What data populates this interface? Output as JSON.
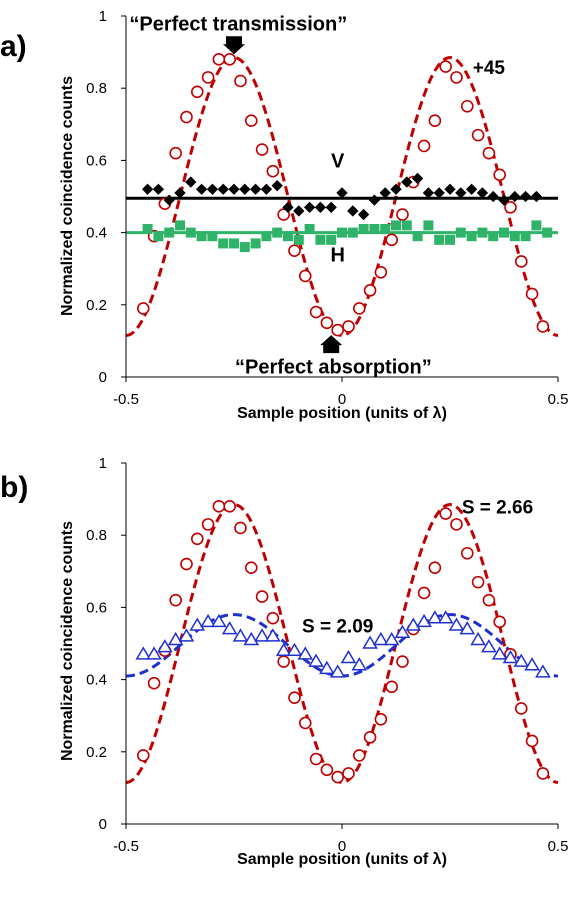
{
  "chart_data": [
    {
      "type": "scatter",
      "panel_label": "a)",
      "xlabel": "Sample position (units of λ)",
      "ylabel": "Normalized coincidence counts",
      "xlim": [
        -0.5,
        0.5
      ],
      "ylim": [
        0,
        1
      ],
      "x_ticks": [
        "-0.5",
        "0",
        "0.5"
      ],
      "y_ticks": [
        "0",
        "0.2",
        "0.4",
        "0.6",
        "0.8",
        "1"
      ],
      "grid": false,
      "colors": {
        "plus45": "#c00000",
        "V": "#000000",
        "H": "#2eb368"
      },
      "annotations": [
        {
          "text": "“Perfect transmission”",
          "x": -0.24,
          "y": 0.91,
          "arrow": "down"
        },
        {
          "text": "“Perfect absorption”",
          "x": -0.02,
          "y": 0.08,
          "arrow": "up"
        },
        {
          "text": "+45",
          "x": 0.34,
          "y": 0.84
        },
        {
          "text": "V",
          "x": -0.01,
          "y": 0.58
        },
        {
          "text": "H",
          "x": -0.01,
          "y": 0.32
        }
      ],
      "series": [
        {
          "label": "+45",
          "marker": "open-circle",
          "fit": {
            "kind": "dashed",
            "mean": 0.5,
            "amplitude": 0.385,
            "period": 0.5,
            "peak_x": -0.25
          },
          "x": [
            -0.46,
            -0.435,
            -0.41,
            -0.385,
            -0.36,
            -0.335,
            -0.31,
            -0.285,
            -0.26,
            -0.235,
            -0.21,
            -0.185,
            -0.16,
            -0.135,
            -0.11,
            -0.085,
            -0.06,
            -0.035,
            -0.01,
            0.015,
            0.04,
            0.065,
            0.09,
            0.115,
            0.14,
            0.165,
            0.19,
            0.215,
            0.24,
            0.265,
            0.29,
            0.315,
            0.34,
            0.365,
            0.39,
            0.415,
            0.44,
            0.465
          ],
          "y": [
            0.19,
            0.39,
            0.48,
            0.62,
            0.72,
            0.79,
            0.83,
            0.88,
            0.88,
            0.82,
            0.71,
            0.63,
            0.57,
            0.45,
            0.35,
            0.28,
            0.18,
            0.15,
            0.13,
            0.14,
            0.19,
            0.24,
            0.29,
            0.38,
            0.45,
            0.54,
            0.64,
            0.71,
            0.86,
            0.83,
            0.75,
            0.67,
            0.62,
            0.56,
            0.47,
            0.32,
            0.23,
            0.14
          ]
        },
        {
          "label": "V",
          "marker": "filled-diamond",
          "fit": {
            "kind": "solid",
            "value": 0.495
          },
          "x": [
            -0.45,
            -0.425,
            -0.4,
            -0.375,
            -0.35,
            -0.325,
            -0.3,
            -0.275,
            -0.25,
            -0.225,
            -0.2,
            -0.175,
            -0.15,
            -0.125,
            -0.1,
            -0.075,
            -0.05,
            -0.025,
            0.0,
            0.025,
            0.05,
            0.075,
            0.1,
            0.125,
            0.15,
            0.175,
            0.2,
            0.225,
            0.25,
            0.275,
            0.3,
            0.325,
            0.35,
            0.375,
            0.4,
            0.425,
            0.45
          ],
          "y": [
            0.52,
            0.52,
            0.49,
            0.51,
            0.54,
            0.52,
            0.52,
            0.52,
            0.52,
            0.52,
            0.52,
            0.52,
            0.53,
            0.47,
            0.46,
            0.47,
            0.47,
            0.47,
            0.51,
            0.46,
            0.45,
            0.49,
            0.51,
            0.52,
            0.54,
            0.55,
            0.51,
            0.51,
            0.52,
            0.51,
            0.52,
            0.51,
            0.5,
            0.49,
            0.5,
            0.5,
            0.5
          ]
        },
        {
          "label": "H",
          "marker": "filled-square",
          "fit": {
            "kind": "solid",
            "value": 0.4
          },
          "x": [
            -0.45,
            -0.425,
            -0.4,
            -0.375,
            -0.35,
            -0.325,
            -0.3,
            -0.275,
            -0.25,
            -0.225,
            -0.2,
            -0.175,
            -0.15,
            -0.125,
            -0.1,
            -0.075,
            -0.05,
            -0.025,
            0.0,
            0.025,
            0.05,
            0.075,
            0.1,
            0.125,
            0.15,
            0.175,
            0.2,
            0.225,
            0.25,
            0.275,
            0.3,
            0.325,
            0.35,
            0.375,
            0.4,
            0.425,
            0.45,
            0.475
          ],
          "y": [
            0.41,
            0.39,
            0.4,
            0.42,
            0.4,
            0.39,
            0.39,
            0.37,
            0.37,
            0.36,
            0.37,
            0.39,
            0.4,
            0.39,
            0.38,
            0.41,
            0.38,
            0.38,
            0.4,
            0.4,
            0.41,
            0.41,
            0.41,
            0.42,
            0.42,
            0.39,
            0.42,
            0.38,
            0.38,
            0.4,
            0.39,
            0.4,
            0.39,
            0.4,
            0.39,
            0.39,
            0.42,
            0.4
          ]
        }
      ]
    },
    {
      "type": "scatter",
      "panel_label": "b)",
      "xlabel": "Sample position (units of λ)",
      "ylabel": "Normalized coincidence counts",
      "xlim": [
        -0.5,
        0.5
      ],
      "ylim": [
        0,
        1
      ],
      "x_ticks": [
        "-0.5",
        "0",
        "0.5"
      ],
      "y_ticks": [
        "0",
        "0.2",
        "0.4",
        "0.6",
        "0.8",
        "1"
      ],
      "grid": false,
      "colors": {
        "red": "#c00000",
        "blue": "#2030d0"
      },
      "annotations": [
        {
          "text": "S = 2.66",
          "x": 0.36,
          "y": 0.86
        },
        {
          "text": "S = 2.09",
          "x": -0.01,
          "y": 0.53
        }
      ],
      "series": [
        {
          "marker": "open-circle",
          "fit": {
            "kind": "dashed",
            "mean": 0.5,
            "amplitude": 0.385,
            "period": 0.5,
            "peak_x": -0.25
          },
          "x": [
            -0.46,
            -0.435,
            -0.41,
            -0.385,
            -0.36,
            -0.335,
            -0.31,
            -0.285,
            -0.26,
            -0.235,
            -0.21,
            -0.185,
            -0.16,
            -0.135,
            -0.11,
            -0.085,
            -0.06,
            -0.035,
            -0.01,
            0.015,
            0.04,
            0.065,
            0.09,
            0.115,
            0.14,
            0.165,
            0.19,
            0.215,
            0.24,
            0.265,
            0.29,
            0.315,
            0.34,
            0.365,
            0.39,
            0.415,
            0.44,
            0.465
          ],
          "y": [
            0.19,
            0.39,
            0.48,
            0.62,
            0.72,
            0.79,
            0.83,
            0.88,
            0.88,
            0.82,
            0.71,
            0.63,
            0.57,
            0.45,
            0.35,
            0.28,
            0.18,
            0.15,
            0.13,
            0.14,
            0.19,
            0.24,
            0.29,
            0.38,
            0.45,
            0.54,
            0.64,
            0.71,
            0.86,
            0.83,
            0.75,
            0.67,
            0.62,
            0.56,
            0.47,
            0.32,
            0.23,
            0.14
          ]
        },
        {
          "marker": "open-triangle",
          "fit": {
            "kind": "dashed",
            "mean": 0.495,
            "amplitude": 0.085,
            "period": 0.5,
            "peak_x": -0.25
          },
          "x": [
            -0.46,
            -0.435,
            -0.41,
            -0.385,
            -0.36,
            -0.335,
            -0.31,
            -0.285,
            -0.26,
            -0.235,
            -0.21,
            -0.185,
            -0.16,
            -0.135,
            -0.11,
            -0.085,
            -0.06,
            -0.035,
            -0.01,
            0.015,
            0.04,
            0.065,
            0.09,
            0.115,
            0.14,
            0.165,
            0.19,
            0.215,
            0.24,
            0.265,
            0.29,
            0.315,
            0.34,
            0.365,
            0.39,
            0.415,
            0.44,
            0.465
          ],
          "y": [
            0.47,
            0.47,
            0.49,
            0.51,
            0.52,
            0.55,
            0.56,
            0.56,
            0.54,
            0.52,
            0.51,
            0.52,
            0.52,
            0.48,
            0.48,
            0.47,
            0.45,
            0.43,
            0.42,
            0.46,
            0.44,
            0.5,
            0.51,
            0.51,
            0.53,
            0.55,
            0.56,
            0.57,
            0.57,
            0.55,
            0.54,
            0.51,
            0.49,
            0.47,
            0.46,
            0.45,
            0.44,
            0.42
          ]
        }
      ]
    }
  ]
}
